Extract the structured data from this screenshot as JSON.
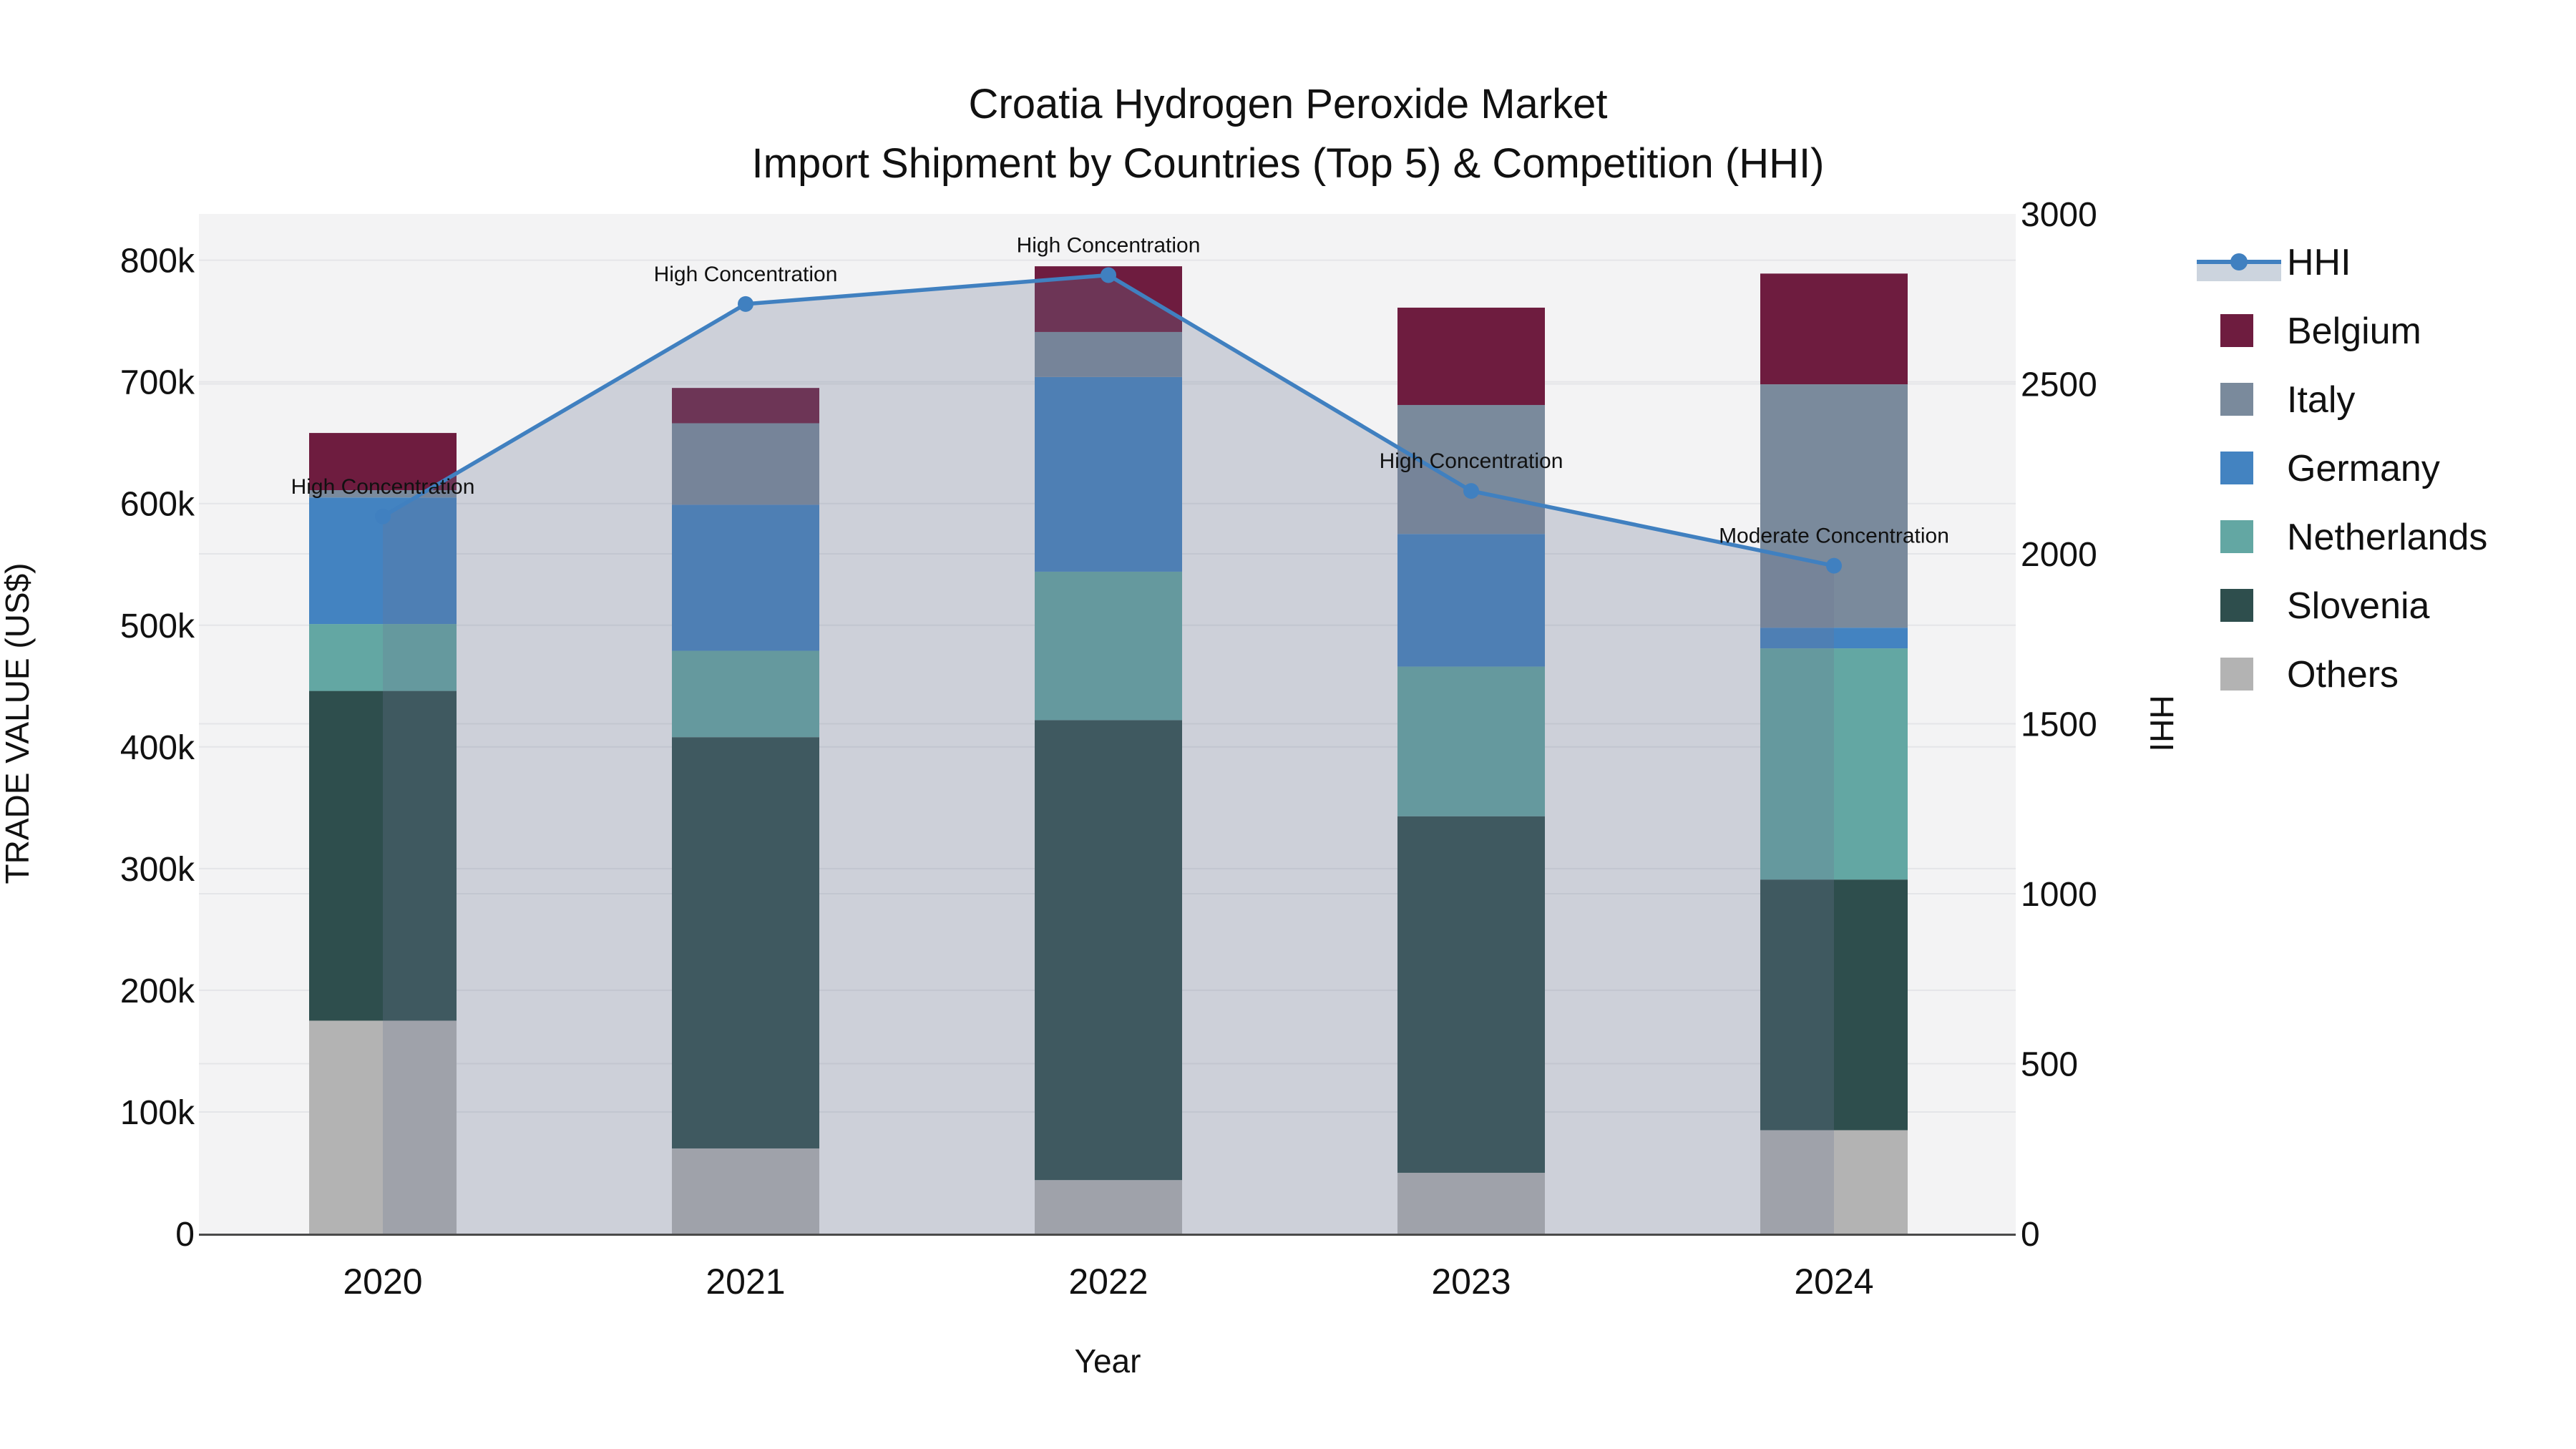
{
  "chart_data": {
    "type": "bar",
    "variant": "stacked-bars-with-line-overlay",
    "title": "Croatia Hydrogen Peroxide Market",
    "subtitle": "Import Shipment by Countries (Top 5) & Competition (HHI)",
    "categories": [
      "2020",
      "2021",
      "2022",
      "2023",
      "2024"
    ],
    "values_unit": "trade value in thousands of US$ (k)",
    "series": [
      {
        "name": "Belgium",
        "color": "#6e1c3f",
        "values_k": [
          47,
          29,
          54,
          80,
          91
        ]
      },
      {
        "name": "Italy",
        "color": "#7a8a9c",
        "values_k": [
          6,
          67,
          37,
          106,
          200
        ]
      },
      {
        "name": "Germany",
        "color": "#4383c1",
        "values_k": [
          104,
          120,
          160,
          109,
          17
        ]
      },
      {
        "name": "Netherlands",
        "color": "#63a7a3",
        "values_k": [
          55,
          71,
          122,
          123,
          190
        ]
      },
      {
        "name": "Slovenia",
        "color": "#2e4e4d",
        "values_k": [
          271,
          338,
          378,
          293,
          206
        ]
      },
      {
        "name": "Others",
        "color": "#b3b3b3",
        "values_k": [
          175,
          70,
          44,
          50,
          85
        ]
      }
    ],
    "stack_order_bottom_to_top": [
      "Others",
      "Slovenia",
      "Netherlands",
      "Germany",
      "Italy",
      "Belgium"
    ],
    "totals_k": [
      658,
      695,
      795,
      761,
      789
    ],
    "hhi": {
      "name": "HHI",
      "line_color": "#4080c0",
      "fill_color": "rgba(108,120,148,0.28)",
      "values": [
        2110,
        2735,
        2820,
        2185,
        1965
      ],
      "annotations": [
        "High Concentration",
        "High Concentration",
        "High Concentration",
        "High Concentration",
        "Moderate Concentration"
      ]
    },
    "axes": {
      "y_left": {
        "label": "TRADE VALUE (US$)",
        "tick_values_k": [
          0,
          100,
          200,
          300,
          400,
          500,
          600,
          700,
          800
        ],
        "tick_labels": [
          "0",
          "100k",
          "200k",
          "300k",
          "400k",
          "500k",
          "600k",
          "700k",
          "800k"
        ],
        "range_k": [
          0,
          838
        ]
      },
      "y_right": {
        "label": "HHI",
        "tick_values": [
          0,
          500,
          1000,
          1500,
          2000,
          2500,
          3000
        ],
        "tick_labels": [
          "0",
          "500",
          "1000",
          "1500",
          "2000",
          "2500",
          "3000"
        ],
        "range": [
          0,
          3000
        ]
      },
      "x": {
        "label": "Year"
      }
    },
    "legend": {
      "items": [
        "HHI",
        "Belgium",
        "Italy",
        "Germany",
        "Netherlands",
        "Slovenia",
        "Others"
      ]
    },
    "style": {
      "plot_bg": "#f3f3f4",
      "grid": "#e4e5e8",
      "axis_line": "#4a4a4a",
      "text": "#111111",
      "legend_hhi_band": "#ccd4de"
    }
  }
}
